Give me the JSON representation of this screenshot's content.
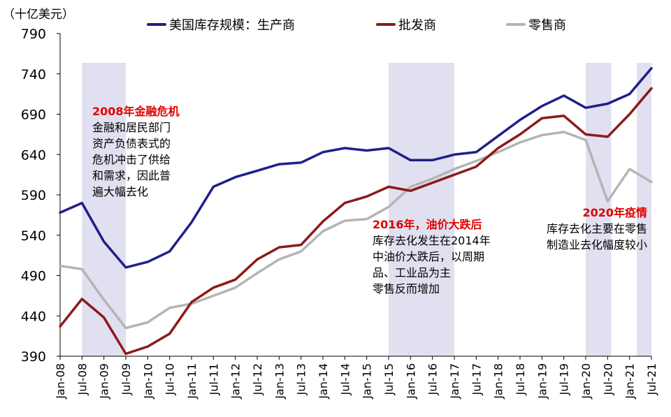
{
  "chart_data": {
    "type": "line",
    "unit_label": "（十亿美元）",
    "ylim": [
      390,
      790
    ],
    "yticks": [
      390,
      440,
      490,
      540,
      590,
      640,
      690,
      740,
      790
    ],
    "x": [
      "Jan-08",
      "Jul-08",
      "Jan-09",
      "Jul-09",
      "Jan-10",
      "Jul-10",
      "Jan-11",
      "Jul-11",
      "Jan-12",
      "Jul-12",
      "Jan-13",
      "Jul-13",
      "Jan-14",
      "Jul-14",
      "Jan-15",
      "Jul-15",
      "Jan-16",
      "Jul-16",
      "Jan-17",
      "Jul-17",
      "Jan-18",
      "Jul-18",
      "Jan-19",
      "Jul-19",
      "Jan-20",
      "Jul-20",
      "Jan-21",
      "Jul-21"
    ],
    "series": [
      {
        "name": "美国库存规模：生产商",
        "color": "#1f1f8c",
        "values": [
          568,
          580,
          532,
          500,
          507,
          520,
          556,
          600,
          612,
          620,
          628,
          630,
          643,
          648,
          645,
          648,
          633,
          633,
          640,
          643,
          663,
          683,
          700,
          713,
          698,
          703,
          715,
          747
        ]
      },
      {
        "name": "批发商",
        "color": "#8b1a1a",
        "values": [
          427,
          461,
          438,
          393,
          402,
          418,
          457,
          475,
          485,
          510,
          525,
          528,
          557,
          580,
          588,
          600,
          595,
          605,
          615,
          625,
          648,
          665,
          685,
          688,
          665,
          662,
          690,
          722
        ]
      },
      {
        "name": "零售商",
        "color": "#b4b4b4",
        "values": [
          502,
          498,
          460,
          425,
          432,
          450,
          455,
          465,
          475,
          493,
          510,
          520,
          545,
          558,
          560,
          575,
          600,
          610,
          622,
          632,
          643,
          655,
          664,
          668,
          658,
          582,
          622,
          606
        ]
      }
    ],
    "shaded_periods": [
      [
        "Jul-08",
        "Jul-09"
      ],
      [
        "Jul-15",
        "Jan-17"
      ],
      [
        "Jan-20",
        "Aug-20"
      ],
      [
        "Mar-21",
        "Jul-21"
      ]
    ],
    "annotations": [
      {
        "title": "2008年金融危机",
        "lines": [
          "金融和居民部门",
          "资产负债表式的",
          "危机冲击了供给",
          "和需求，因此普",
          "遍大幅去化"
        ]
      },
      {
        "title": "2016年，油价大跌后",
        "lines": [
          "库存去化发生在2014年",
          "中油价大跌后，以周期",
          "品、工业品为主",
          "零售反而增加"
        ]
      },
      {
        "title": "2020年疫情",
        "lines": [
          "库存去化主要在零售",
          "制造业去化幅度较小"
        ]
      }
    ]
  }
}
